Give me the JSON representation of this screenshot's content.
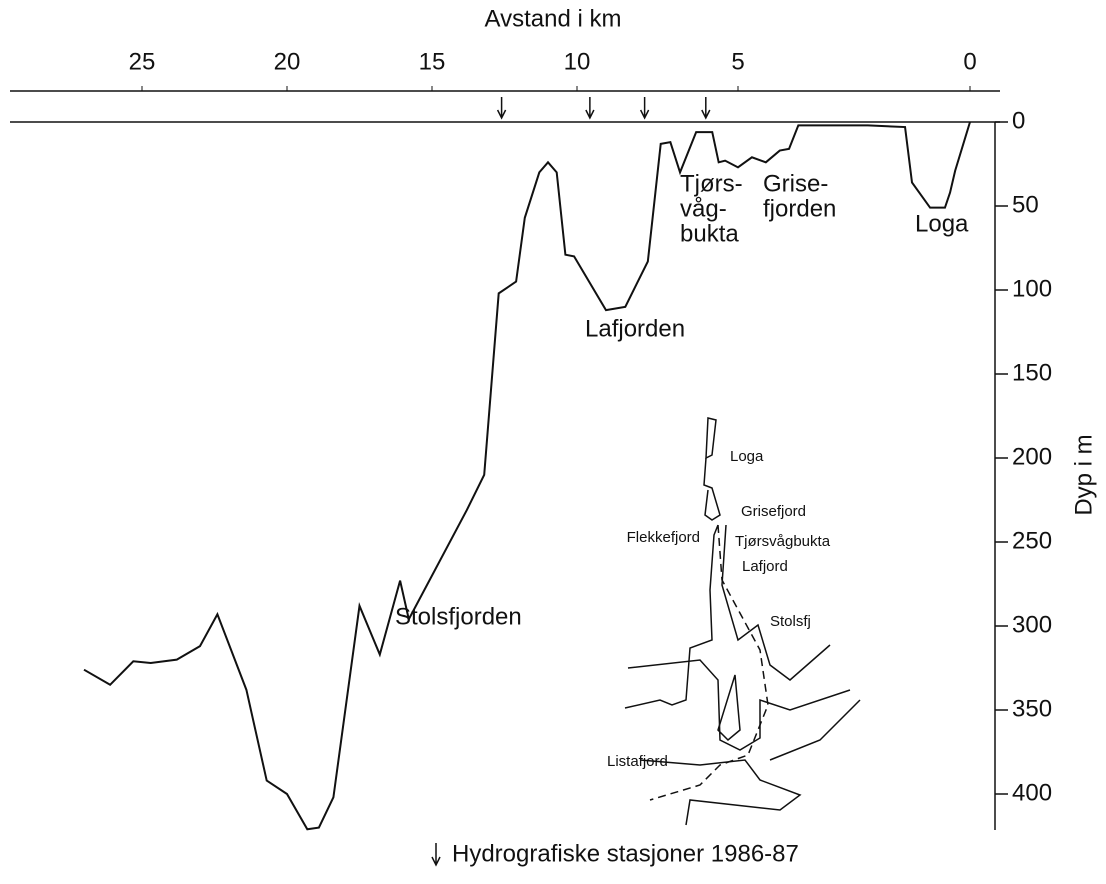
{
  "chart_data": {
    "type": "line",
    "title": "Avstand i km",
    "y_label": "Dyp i m",
    "x": [
      27.0,
      26.1,
      25.3,
      24.7,
      23.8,
      23.0,
      22.4,
      21.4,
      20.7,
      20.0,
      19.3,
      18.9,
      18.4,
      17.5,
      16.8,
      16.1,
      15.8,
      13.8,
      13.2,
      12.7,
      12.1,
      11.8,
      11.3,
      11.0,
      10.7,
      10.4,
      10.1,
      9.1,
      8.5,
      7.8,
      7.4,
      7.1,
      6.8,
      6.3,
      5.8,
      5.6,
      5.4,
      5.0,
      4.7,
      4.4,
      4.1,
      3.9,
      3.7,
      2.2,
      1.4,
      1.25,
      0.86,
      0.54,
      0.43,
      0.32,
      0
    ],
    "series": [
      {
        "name": "Dyp",
        "color": "#111111",
        "values": [
          326,
          335,
          321,
          322,
          320,
          312,
          293,
          338,
          392,
          400,
          421,
          420,
          402,
          288,
          317,
          273,
          296,
          231,
          210,
          102,
          95,
          57,
          30,
          24,
          30,
          79,
          80,
          112,
          110,
          83,
          13,
          12,
          30,
          6,
          6,
          24,
          23,
          27,
          21,
          24,
          17,
          16,
          2,
          2,
          3,
          36,
          51,
          51,
          42,
          29,
          0
        ]
      }
    ],
    "xlim": [
      27.0,
      0
    ],
    "xticks": [
      25,
      20,
      15,
      10,
      5,
      0
    ],
    "ylim": [
      0,
      420
    ],
    "yticks": [
      0,
      50,
      100,
      150,
      200,
      250,
      300,
      350,
      400
    ],
    "stations": [
      12.6,
      9.6,
      7.9,
      6.0
    ],
    "legend": "Hydrografiske stasjoner 1986-87",
    "annotations": [
      "Tjørs-",
      "våg-",
      "bukta",
      "Grise-",
      "fjorden",
      "Loga",
      "Lafjorden",
      "Stolsfjorden"
    ],
    "map_labels": [
      "Loga",
      "Grisefjord",
      "Flekkefjord",
      "Tjørsvågbukta",
      "Lafjord",
      "Stolsfj",
      "Listafjord"
    ]
  }
}
